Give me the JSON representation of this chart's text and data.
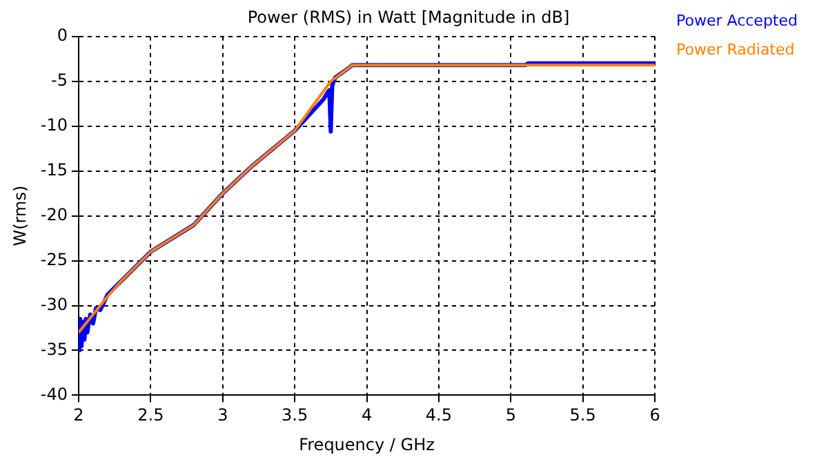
{
  "chart_data": {
    "type": "line",
    "title": "Power (RMS) in Watt [Magnitude in dB]",
    "xlabel": "Frequency / GHz",
    "ylabel": "W(rms)",
    "xlim": [
      2,
      6
    ],
    "xticks": [
      2,
      2.5,
      3,
      3.5,
      4,
      4.5,
      5,
      5.5,
      6
    ],
    "ylim": [
      -40,
      0
    ],
    "yticks": [
      -40,
      -35,
      -30,
      -25,
      -20,
      -15,
      -10,
      -5,
      0
    ],
    "grid": true,
    "legend": "right",
    "marker": "none",
    "line_style": "solid",
    "series": [
      {
        "name": "Power Accepted",
        "color": "#0000ff",
        "x": [
          2,
          2.005,
          2.01,
          2.02,
          2.03,
          2.04,
          2.05,
          2.06,
          2.08,
          2.1,
          2.12,
          2.15,
          2.2,
          2.3,
          2.5,
          2.8,
          3,
          3.2,
          3.5,
          3.7,
          3.73,
          3.74,
          3.75,
          3.76,
          3.78,
          3.85,
          3.9,
          4,
          5.1,
          5.12,
          6
        ],
        "values": [
          -33,
          -35,
          -31.5,
          -34.5,
          -31.8,
          -33.8,
          -31.5,
          -33,
          -31,
          -32,
          -30.3,
          -30.5,
          -28.8,
          -27.2,
          -24,
          -21,
          -17.5,
          -14.5,
          -10.5,
          -7,
          -6.2,
          -6,
          -10.6,
          -5.5,
          -4.6,
          -3.8,
          -3.2,
          -3.2,
          -3.2,
          -3,
          -3
        ]
      },
      {
        "name": "Power Radiated",
        "color": "#ff8000",
        "x": [
          2,
          2.1,
          2.2,
          2.3,
          2.5,
          2.8,
          3,
          3.2,
          3.5,
          3.75,
          3.85,
          3.9,
          4,
          6
        ],
        "values": [
          -33,
          -31,
          -29,
          -27.2,
          -24,
          -21,
          -17.5,
          -14.5,
          -10.5,
          -5,
          -3.8,
          -3.2,
          -3.2,
          -3.2
        ]
      }
    ]
  }
}
